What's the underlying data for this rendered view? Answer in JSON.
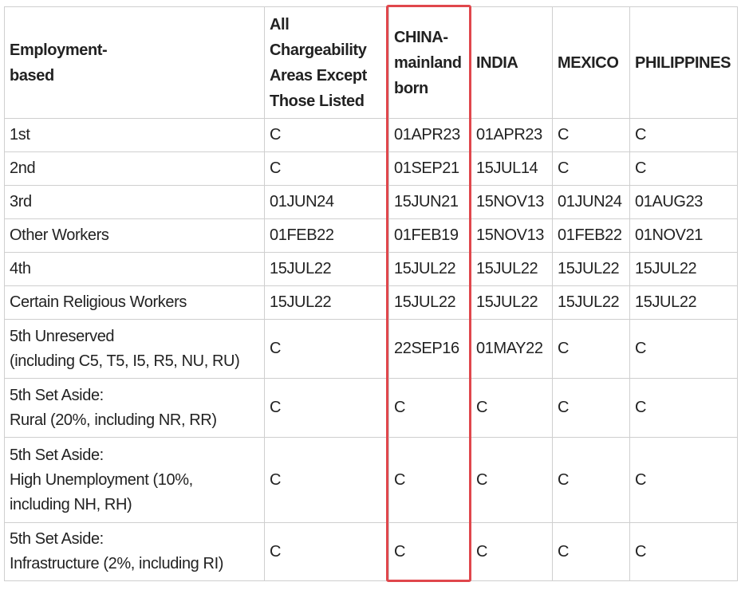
{
  "table": {
    "header": [
      "Employment-\nbased",
      "All\nChargeability\nAreas Except\nThose Listed",
      "CHINA-\nmainland\nborn",
      "INDIA",
      "MEXICO",
      "PHILIPPINES"
    ],
    "rows": [
      [
        "1st",
        "C",
        "01APR23",
        "01APR23",
        "C",
        "C"
      ],
      [
        "2nd",
        "C",
        "01SEP21",
        "15JUL14",
        "C",
        "C"
      ],
      [
        "3rd",
        "01JUN24",
        "15JUN21",
        "15NOV13",
        "01JUN24",
        "01AUG23"
      ],
      [
        "Other Workers",
        "01FEB22",
        "01FEB19",
        "15NOV13",
        "01FEB22",
        "01NOV21"
      ],
      [
        "4th",
        "15JUL22",
        "15JUL22",
        "15JUL22",
        "15JUL22",
        "15JUL22"
      ],
      [
        "Certain Religious Workers",
        "15JUL22",
        "15JUL22",
        "15JUL22",
        "15JUL22",
        "15JUL22"
      ],
      [
        "5th Unreserved\n(including C5, T5, I5, R5, NU, RU)",
        "C",
        "22SEP16",
        "01MAY22",
        "C",
        "C"
      ],
      [
        "5th Set Aside:\nRural (20%, including NR, RR)",
        "C",
        "C",
        "C",
        "C",
        "C"
      ],
      [
        "5th Set Aside:\nHigh Unemployment (10%,\nincluding NH, RH)",
        "C",
        "C",
        "C",
        "C",
        "C"
      ],
      [
        "5th Set Aside:\nInfrastructure (2%, including RI)",
        "C",
        "C",
        "C",
        "C",
        "C"
      ]
    ]
  }
}
